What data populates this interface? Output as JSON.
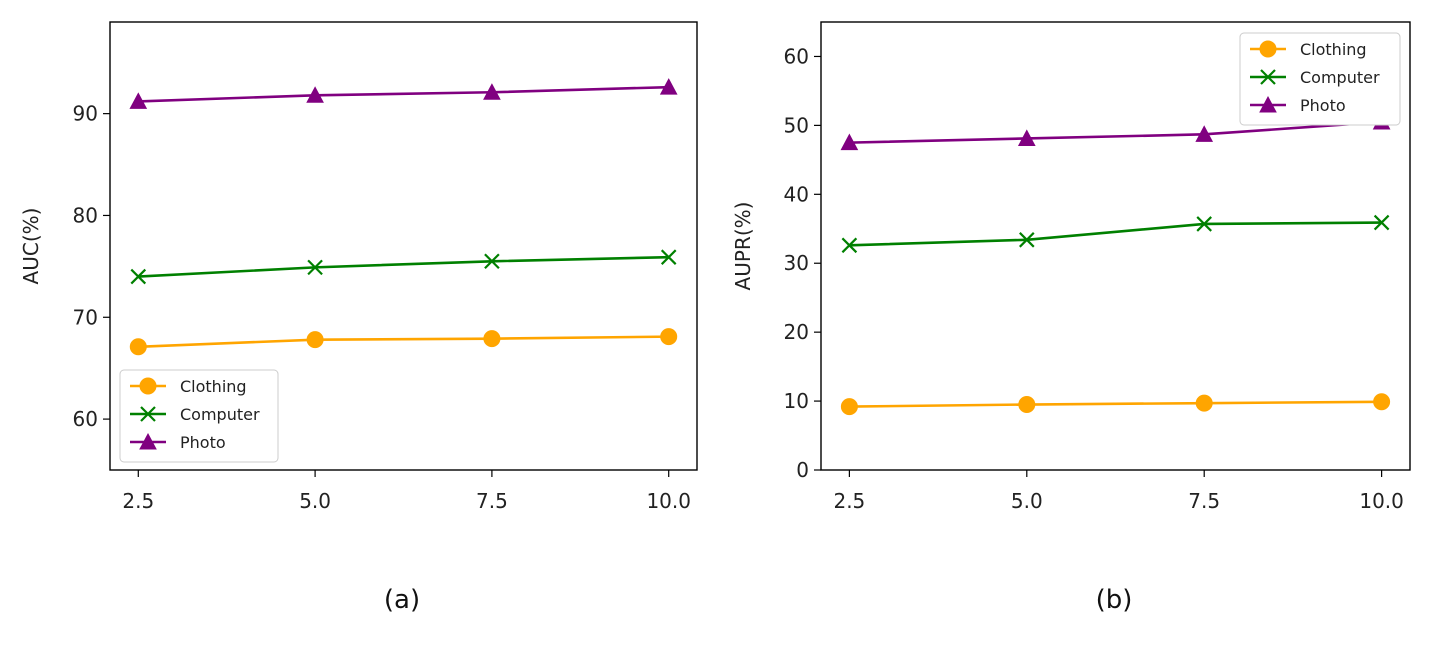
{
  "chart_data": [
    {
      "type": "line",
      "caption": "(a)",
      "xlabel": "",
      "ylabel": "AUC(%)",
      "x": [
        2.5,
        5.0,
        7.5,
        10.0
      ],
      "xticks": [
        "2.5",
        "5.0",
        "7.5",
        "10.0"
      ],
      "xlim": [
        2.1,
        10.4
      ],
      "ylim": [
        55,
        99
      ],
      "yticks": [
        60,
        70,
        80,
        90
      ],
      "ytick_labels": [
        "60",
        "70",
        "80",
        "90"
      ],
      "legend_loc": "lower-left",
      "series": [
        {
          "name": "Clothing",
          "color": "#ffa500",
          "marker": "circle",
          "values": [
            67.1,
            67.8,
            67.9,
            68.1
          ]
        },
        {
          "name": "Computer",
          "color": "#008000",
          "marker": "x",
          "values": [
            74.0,
            74.9,
            75.5,
            75.9
          ]
        },
        {
          "name": "Photo",
          "color": "#800080",
          "marker": "triangle",
          "values": [
            91.2,
            91.8,
            92.1,
            92.6
          ]
        }
      ]
    },
    {
      "type": "line",
      "caption": "(b)",
      "xlabel": "",
      "ylabel": "AUPR(%)",
      "x": [
        2.5,
        5.0,
        7.5,
        10.0
      ],
      "xticks": [
        "2.5",
        "5.0",
        "7.5",
        "10.0"
      ],
      "xlim": [
        2.1,
        10.4
      ],
      "ylim": [
        0,
        65
      ],
      "yticks": [
        0,
        10,
        20,
        30,
        40,
        50,
        60
      ],
      "ytick_labels": [
        "0",
        "10",
        "20",
        "30",
        "40",
        "50",
        "60"
      ],
      "legend_loc": "upper-right",
      "series": [
        {
          "name": "Clothing",
          "color": "#ffa500",
          "marker": "circle",
          "values": [
            9.2,
            9.5,
            9.7,
            9.9
          ]
        },
        {
          "name": "Computer",
          "color": "#008000",
          "marker": "x",
          "values": [
            32.6,
            33.4,
            35.7,
            35.9
          ]
        },
        {
          "name": "Photo",
          "color": "#800080",
          "marker": "triangle",
          "values": [
            47.5,
            48.1,
            48.7,
            50.5
          ]
        }
      ]
    }
  ]
}
